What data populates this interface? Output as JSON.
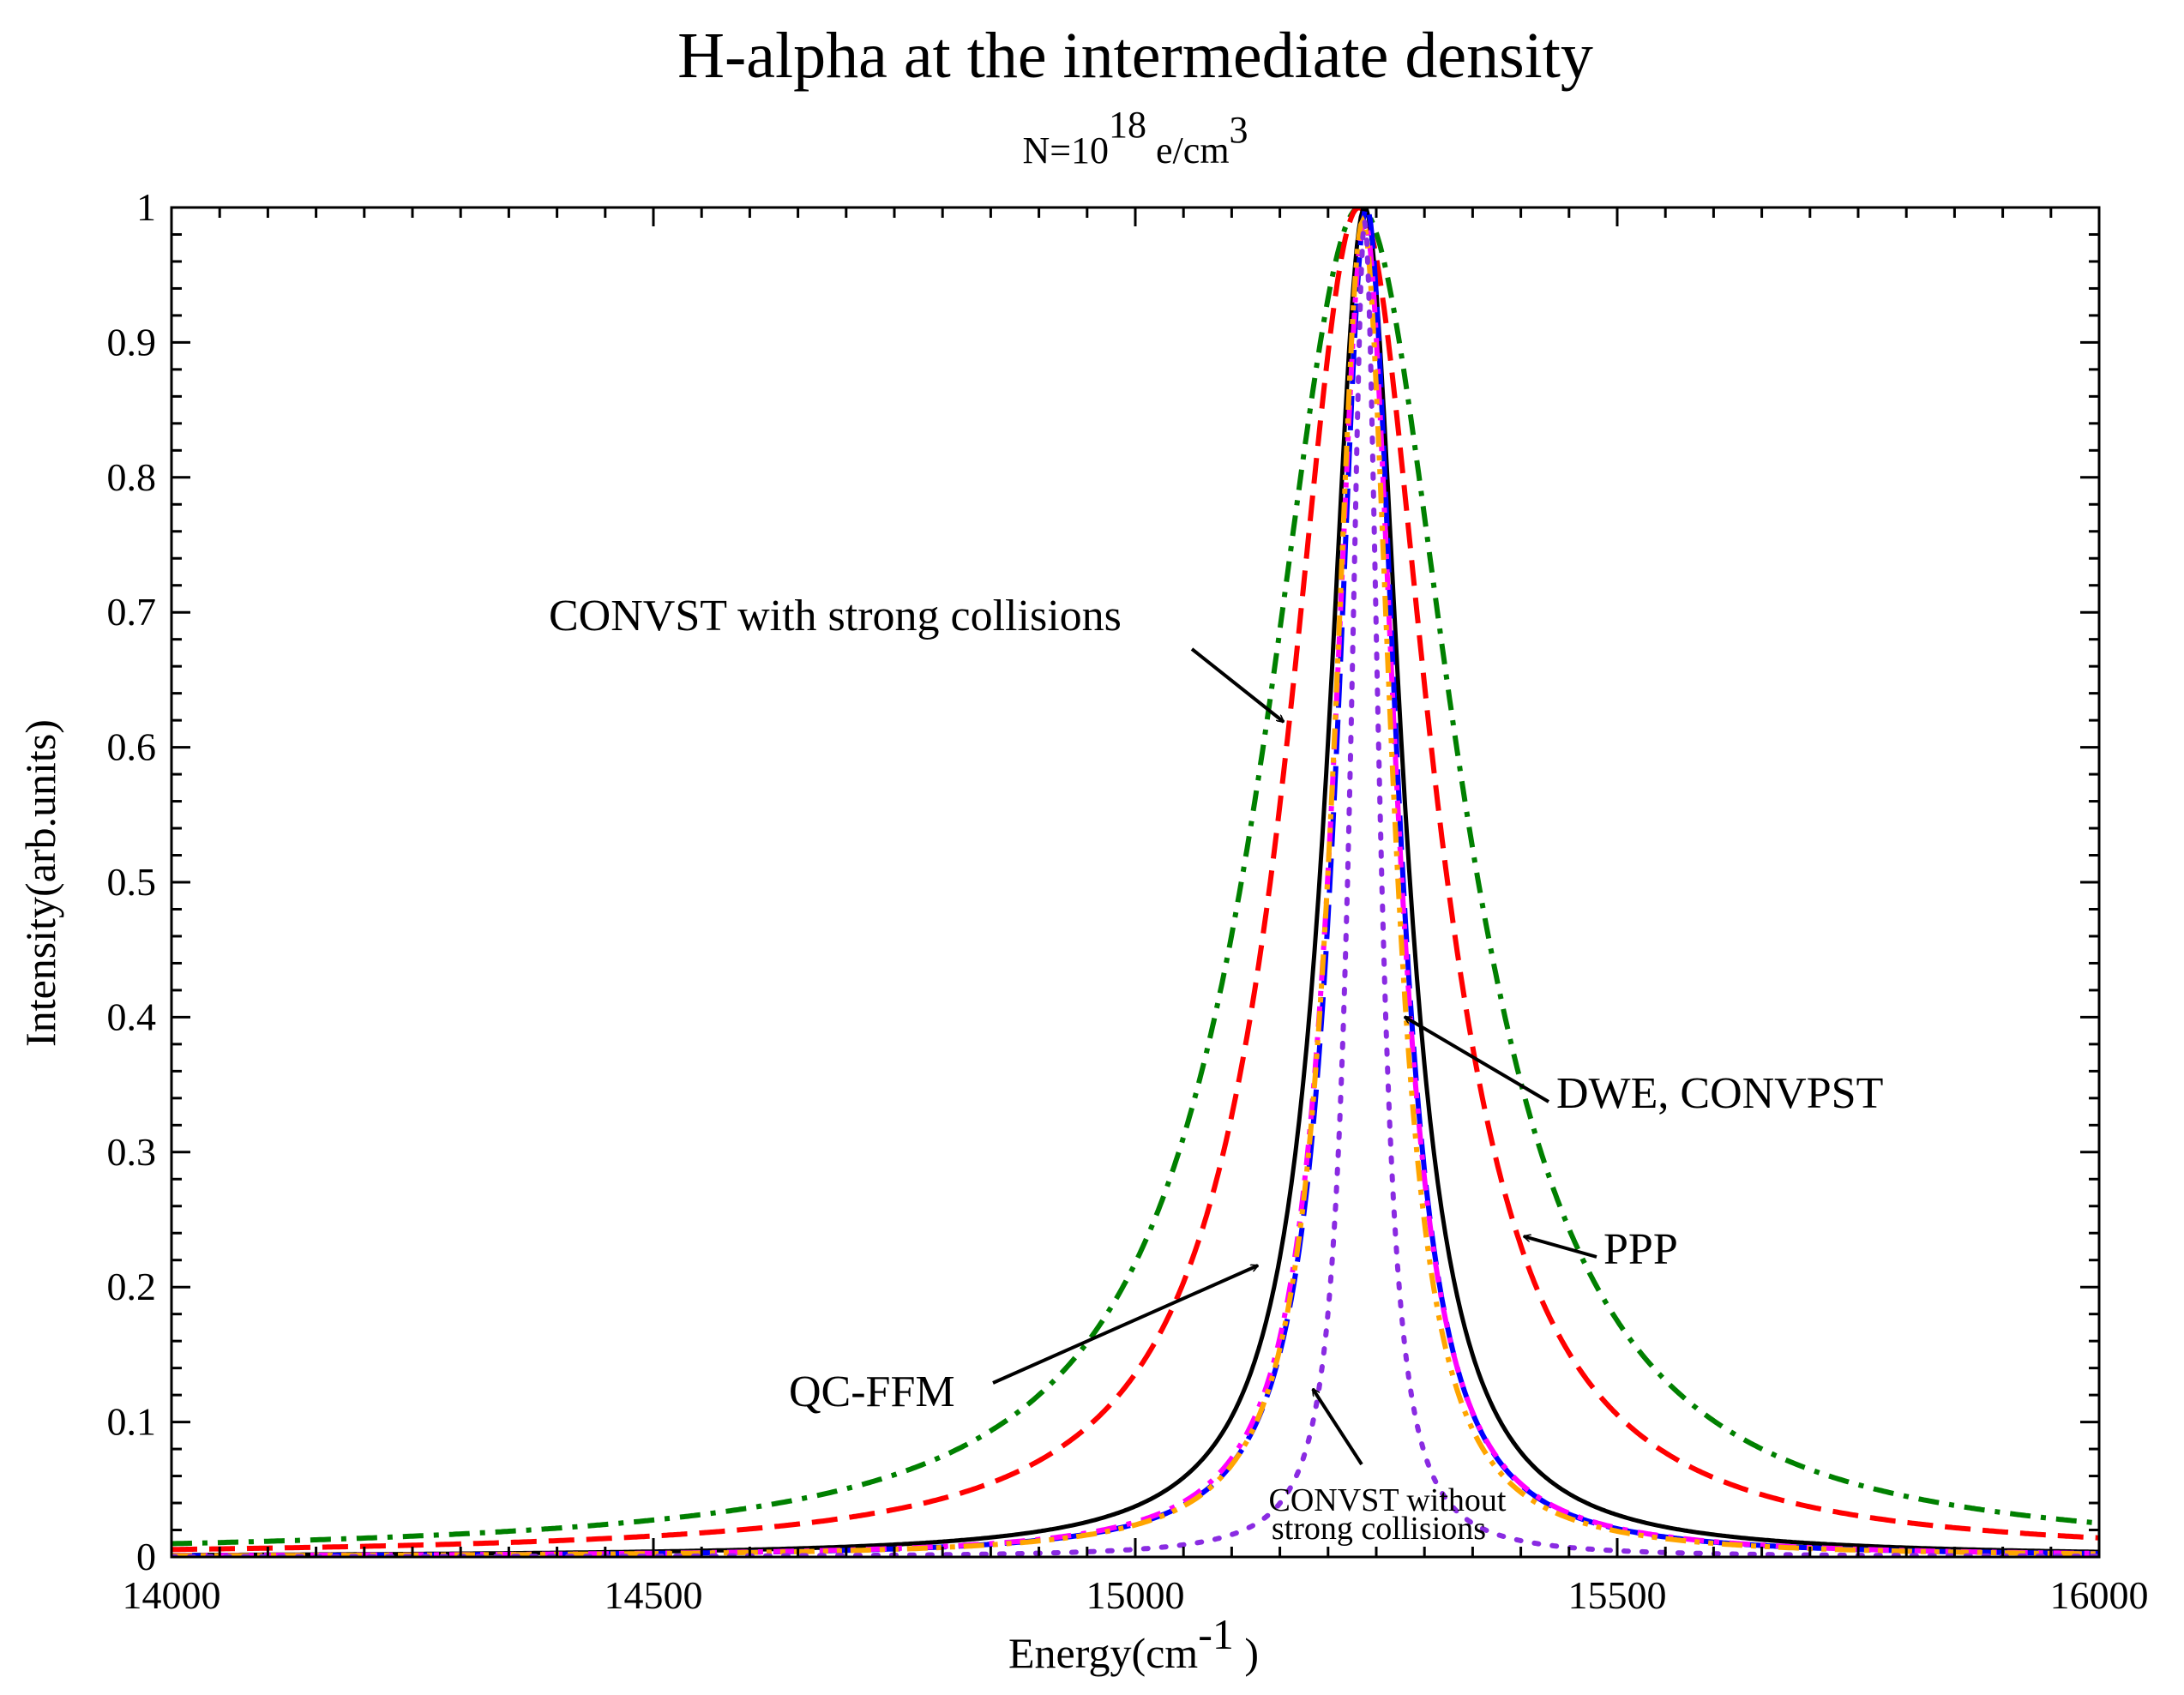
{
  "chart_data": {
    "type": "line",
    "title": "H-alpha at the intermediate density",
    "subtitle": {
      "prefix": "N=10",
      "exponent": "18",
      "suffix": " e/cm",
      "suffix_exp": "3"
    },
    "xlabel": {
      "text": "Energy(cm",
      "exponent": "-1",
      "close": " )"
    },
    "ylabel": "Intensity(arb.units)",
    "xlim": [
      14000,
      16000
    ],
    "ylim": [
      0,
      1
    ],
    "x_ticks": [
      14000,
      14500,
      15000,
      15500,
      16000
    ],
    "x_tick_labels": [
      "14000",
      "14500",
      "15000",
      "15500",
      "16000"
    ],
    "y_ticks": [
      0,
      0.1,
      0.2,
      0.3,
      0.4,
      0.5,
      0.6,
      0.7,
      0.8,
      0.9,
      1
    ],
    "y_tick_labels": [
      "0",
      "0.1",
      "0.2",
      "0.3",
      "0.4",
      "0.5",
      "0.6",
      "0.7",
      "0.8",
      "0.9",
      "1"
    ],
    "grid": false,
    "series": [
      {
        "name": "CONVST with strong collisions",
        "color": "#008000",
        "style": "dashdot",
        "center": 15233,
        "hwhm": 123,
        "peak": 1.0
      },
      {
        "name": "PPP",
        "color": "#ff0000",
        "style": "dashed",
        "center": 15232,
        "hwhm": 92,
        "peak": 1.0
      },
      {
        "name": "QC-FFM",
        "color": "#000000",
        "style": "solid",
        "center": 15238,
        "hwhm": 47,
        "peak": 1.0
      },
      {
        "name": "DWE",
        "color": "#0000ff",
        "style": "longdash",
        "center": 15240,
        "hwhm": 38,
        "peak": 1.0
      },
      {
        "name": "CONVPST",
        "color": "#ff00ff",
        "style": "dashdot",
        "center": 15238,
        "hwhm": 39,
        "peak": 0.99
      },
      {
        "name": "orange",
        "color": "#ffa500",
        "style": "dashdotdot",
        "center": 15236,
        "hwhm": 37,
        "peak": 0.99
      },
      {
        "name": "CONVST without strong collisions",
        "color": "#8a2be2",
        "style": "dotted",
        "center": 15238,
        "hwhm": 18,
        "peak": 0.99
      }
    ],
    "annotations": [
      {
        "text": "CONVST with strong collisions",
        "points_to": [
          15152,
          0.62
        ]
      },
      {
        "text": "DWE, CONVPST",
        "points_to": [
          15278,
          0.4
        ]
      },
      {
        "text": "PPP",
        "points_to": [
          15395,
          0.235
        ]
      },
      {
        "text": "QC-FFM",
        "points_to": [
          15128,
          0.218
        ]
      },
      {
        "text": "CONVST without",
        "points_to": [
          15180,
          0.13
        ]
      },
      {
        "text": "strong collisions"
      }
    ]
  }
}
